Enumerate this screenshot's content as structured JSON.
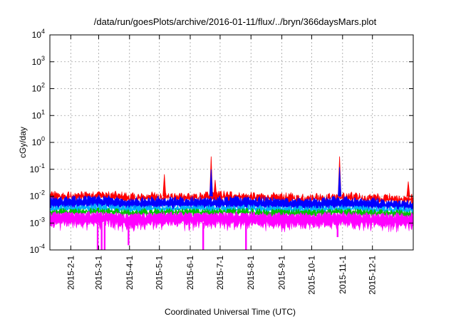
{
  "chart_data": {
    "type": "area",
    "title": "/data/run/goesPlots/archive/2016-01-11/flux/../bryn/366daysMars.plot",
    "xlabel": "Coordinated Universal Time (UTC)",
    "ylabel": "cGy/day",
    "yscale": "log",
    "ylim": [
      0.0001,
      10000
    ],
    "xlim": [
      "2015-01-11",
      "2016-01-11"
    ],
    "grid": true,
    "x_ticks": [
      "2015-2-1",
      "2015-3-1",
      "2015-4-1",
      "2015-5-1",
      "2015-6-1",
      "2015-7-1",
      "2015-8-1",
      "2015-9-1",
      "2015-10-1",
      "2015-11-1",
      "2015-12-1"
    ],
    "y_ticks": [
      {
        "value": 0.0001,
        "base": "10",
        "exp": "-4"
      },
      {
        "value": 0.001,
        "base": "10",
        "exp": "-3"
      },
      {
        "value": 0.01,
        "base": "10",
        "exp": "-2"
      },
      {
        "value": 0.1,
        "base": "10",
        "exp": "-1"
      },
      {
        "value": 1,
        "base": "10",
        "exp": "0"
      },
      {
        "value": 10,
        "base": "10",
        "exp": "1"
      },
      {
        "value": 100,
        "base": "10",
        "exp": "2"
      },
      {
        "value": 1000,
        "base": "10",
        "exp": "3"
      },
      {
        "value": 10000,
        "base": "10",
        "exp": "4"
      }
    ],
    "series_colors": [
      "#ff0000",
      "#0000ff",
      "#00b0ff",
      "#00c000",
      "#ff00ff"
    ],
    "envelope": {
      "dates": [
        "2015-01-11",
        "2015-02-01",
        "2015-03-01",
        "2015-04-01",
        "2015-05-01",
        "2015-06-01",
        "2015-07-01",
        "2015-08-01",
        "2015-09-01",
        "2015-10-01",
        "2015-11-01",
        "2015-12-01",
        "2016-01-11"
      ],
      "red_max": [
        0.012,
        0.011,
        0.013,
        0.01,
        0.011,
        0.011,
        0.012,
        0.011,
        0.01,
        0.01,
        0.011,
        0.01,
        0.009
      ],
      "blue_max": [
        0.008,
        0.008,
        0.009,
        0.007,
        0.008,
        0.008,
        0.008,
        0.008,
        0.007,
        0.007,
        0.008,
        0.007,
        0.006
      ],
      "cyan_level": [
        0.004,
        0.004,
        0.0045,
        0.0038,
        0.004,
        0.004,
        0.004,
        0.004,
        0.0037,
        0.0037,
        0.004,
        0.0037,
        0.0034
      ],
      "green_level": [
        0.003,
        0.003,
        0.0033,
        0.0028,
        0.003,
        0.003,
        0.003,
        0.003,
        0.0028,
        0.0028,
        0.003,
        0.0028,
        0.0026
      ],
      "magenta_max": [
        0.0022,
        0.0022,
        0.0024,
        0.002,
        0.0022,
        0.0022,
        0.0022,
        0.0022,
        0.002,
        0.002,
        0.0022,
        0.002,
        0.0019
      ],
      "magenta_min": [
        0.0009,
        0.0009,
        0.001,
        0.0008,
        0.0009,
        0.0009,
        0.0009,
        0.0009,
        0.0008,
        0.0008,
        0.0009,
        0.0008,
        0.0008
      ]
    },
    "spikes": [
      {
        "date": "2015-05-06",
        "value": 0.065,
        "color": "#ff0000"
      },
      {
        "date": "2015-06-22",
        "value": 0.3,
        "color": "#ff0000"
      },
      {
        "date": "2015-06-22",
        "value": 0.1,
        "color": "#0000ff"
      },
      {
        "date": "2015-06-26",
        "value": 0.04,
        "color": "#ff0000"
      },
      {
        "date": "2015-10-29",
        "value": 0.3,
        "color": "#ff0000"
      },
      {
        "date": "2015-10-29",
        "value": 0.12,
        "color": "#0000ff"
      },
      {
        "date": "2016-01-06",
        "value": 0.035,
        "color": "#ff0000"
      }
    ],
    "dips": [
      {
        "date": "2015-02-28",
        "value": 0.0001
      },
      {
        "date": "2015-03-04",
        "value": 0.0001
      },
      {
        "date": "2015-03-07",
        "value": 0.0001
      },
      {
        "date": "2015-03-31",
        "value": 0.00015
      },
      {
        "date": "2015-06-14",
        "value": 0.0001
      },
      {
        "date": "2015-07-27",
        "value": 0.0001
      },
      {
        "date": "2015-10-27",
        "value": 0.0003
      }
    ]
  }
}
